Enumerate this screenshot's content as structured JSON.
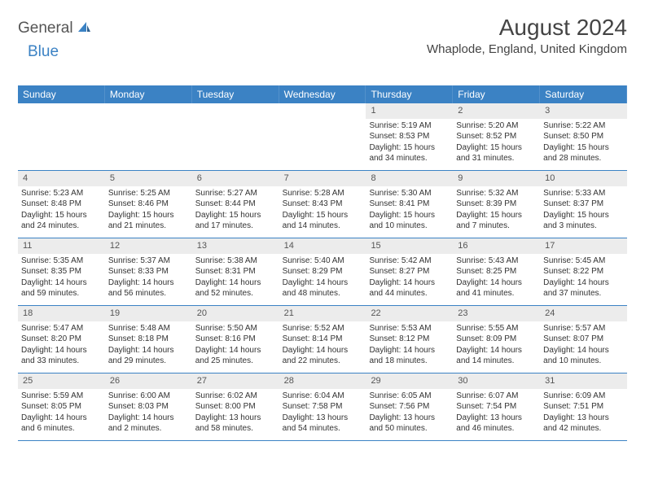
{
  "logo": {
    "general": "General",
    "blue": "Blue"
  },
  "title": "August 2024",
  "location": "Whaplode, England, United Kingdom",
  "colors": {
    "header_bg": "#3b82c4",
    "daynum_bg": "#ececec",
    "border": "#3b82c4",
    "text": "#333333"
  },
  "weekdays": [
    "Sunday",
    "Monday",
    "Tuesday",
    "Wednesday",
    "Thursday",
    "Friday",
    "Saturday"
  ],
  "weeks": [
    [
      null,
      null,
      null,
      null,
      {
        "n": "1",
        "sr": "Sunrise: 5:19 AM",
        "ss": "Sunset: 8:53 PM",
        "d1": "Daylight: 15 hours",
        "d2": "and 34 minutes."
      },
      {
        "n": "2",
        "sr": "Sunrise: 5:20 AM",
        "ss": "Sunset: 8:52 PM",
        "d1": "Daylight: 15 hours",
        "d2": "and 31 minutes."
      },
      {
        "n": "3",
        "sr": "Sunrise: 5:22 AM",
        "ss": "Sunset: 8:50 PM",
        "d1": "Daylight: 15 hours",
        "d2": "and 28 minutes."
      }
    ],
    [
      {
        "n": "4",
        "sr": "Sunrise: 5:23 AM",
        "ss": "Sunset: 8:48 PM",
        "d1": "Daylight: 15 hours",
        "d2": "and 24 minutes."
      },
      {
        "n": "5",
        "sr": "Sunrise: 5:25 AM",
        "ss": "Sunset: 8:46 PM",
        "d1": "Daylight: 15 hours",
        "d2": "and 21 minutes."
      },
      {
        "n": "6",
        "sr": "Sunrise: 5:27 AM",
        "ss": "Sunset: 8:44 PM",
        "d1": "Daylight: 15 hours",
        "d2": "and 17 minutes."
      },
      {
        "n": "7",
        "sr": "Sunrise: 5:28 AM",
        "ss": "Sunset: 8:43 PM",
        "d1": "Daylight: 15 hours",
        "d2": "and 14 minutes."
      },
      {
        "n": "8",
        "sr": "Sunrise: 5:30 AM",
        "ss": "Sunset: 8:41 PM",
        "d1": "Daylight: 15 hours",
        "d2": "and 10 minutes."
      },
      {
        "n": "9",
        "sr": "Sunrise: 5:32 AM",
        "ss": "Sunset: 8:39 PM",
        "d1": "Daylight: 15 hours",
        "d2": "and 7 minutes."
      },
      {
        "n": "10",
        "sr": "Sunrise: 5:33 AM",
        "ss": "Sunset: 8:37 PM",
        "d1": "Daylight: 15 hours",
        "d2": "and 3 minutes."
      }
    ],
    [
      {
        "n": "11",
        "sr": "Sunrise: 5:35 AM",
        "ss": "Sunset: 8:35 PM",
        "d1": "Daylight: 14 hours",
        "d2": "and 59 minutes."
      },
      {
        "n": "12",
        "sr": "Sunrise: 5:37 AM",
        "ss": "Sunset: 8:33 PM",
        "d1": "Daylight: 14 hours",
        "d2": "and 56 minutes."
      },
      {
        "n": "13",
        "sr": "Sunrise: 5:38 AM",
        "ss": "Sunset: 8:31 PM",
        "d1": "Daylight: 14 hours",
        "d2": "and 52 minutes."
      },
      {
        "n": "14",
        "sr": "Sunrise: 5:40 AM",
        "ss": "Sunset: 8:29 PM",
        "d1": "Daylight: 14 hours",
        "d2": "and 48 minutes."
      },
      {
        "n": "15",
        "sr": "Sunrise: 5:42 AM",
        "ss": "Sunset: 8:27 PM",
        "d1": "Daylight: 14 hours",
        "d2": "and 44 minutes."
      },
      {
        "n": "16",
        "sr": "Sunrise: 5:43 AM",
        "ss": "Sunset: 8:25 PM",
        "d1": "Daylight: 14 hours",
        "d2": "and 41 minutes."
      },
      {
        "n": "17",
        "sr": "Sunrise: 5:45 AM",
        "ss": "Sunset: 8:22 PM",
        "d1": "Daylight: 14 hours",
        "d2": "and 37 minutes."
      }
    ],
    [
      {
        "n": "18",
        "sr": "Sunrise: 5:47 AM",
        "ss": "Sunset: 8:20 PM",
        "d1": "Daylight: 14 hours",
        "d2": "and 33 minutes."
      },
      {
        "n": "19",
        "sr": "Sunrise: 5:48 AM",
        "ss": "Sunset: 8:18 PM",
        "d1": "Daylight: 14 hours",
        "d2": "and 29 minutes."
      },
      {
        "n": "20",
        "sr": "Sunrise: 5:50 AM",
        "ss": "Sunset: 8:16 PM",
        "d1": "Daylight: 14 hours",
        "d2": "and 25 minutes."
      },
      {
        "n": "21",
        "sr": "Sunrise: 5:52 AM",
        "ss": "Sunset: 8:14 PM",
        "d1": "Daylight: 14 hours",
        "d2": "and 22 minutes."
      },
      {
        "n": "22",
        "sr": "Sunrise: 5:53 AM",
        "ss": "Sunset: 8:12 PM",
        "d1": "Daylight: 14 hours",
        "d2": "and 18 minutes."
      },
      {
        "n": "23",
        "sr": "Sunrise: 5:55 AM",
        "ss": "Sunset: 8:09 PM",
        "d1": "Daylight: 14 hours",
        "d2": "and 14 minutes."
      },
      {
        "n": "24",
        "sr": "Sunrise: 5:57 AM",
        "ss": "Sunset: 8:07 PM",
        "d1": "Daylight: 14 hours",
        "d2": "and 10 minutes."
      }
    ],
    [
      {
        "n": "25",
        "sr": "Sunrise: 5:59 AM",
        "ss": "Sunset: 8:05 PM",
        "d1": "Daylight: 14 hours",
        "d2": "and 6 minutes."
      },
      {
        "n": "26",
        "sr": "Sunrise: 6:00 AM",
        "ss": "Sunset: 8:03 PM",
        "d1": "Daylight: 14 hours",
        "d2": "and 2 minutes."
      },
      {
        "n": "27",
        "sr": "Sunrise: 6:02 AM",
        "ss": "Sunset: 8:00 PM",
        "d1": "Daylight: 13 hours",
        "d2": "and 58 minutes."
      },
      {
        "n": "28",
        "sr": "Sunrise: 6:04 AM",
        "ss": "Sunset: 7:58 PM",
        "d1": "Daylight: 13 hours",
        "d2": "and 54 minutes."
      },
      {
        "n": "29",
        "sr": "Sunrise: 6:05 AM",
        "ss": "Sunset: 7:56 PM",
        "d1": "Daylight: 13 hours",
        "d2": "and 50 minutes."
      },
      {
        "n": "30",
        "sr": "Sunrise: 6:07 AM",
        "ss": "Sunset: 7:54 PM",
        "d1": "Daylight: 13 hours",
        "d2": "and 46 minutes."
      },
      {
        "n": "31",
        "sr": "Sunrise: 6:09 AM",
        "ss": "Sunset: 7:51 PM",
        "d1": "Daylight: 13 hours",
        "d2": "and 42 minutes."
      }
    ]
  ]
}
